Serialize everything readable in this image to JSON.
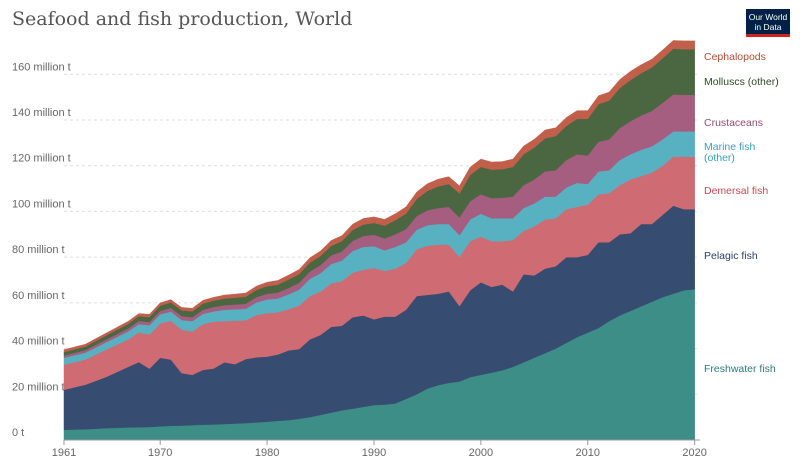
{
  "title": "Seafood and fish production, World",
  "logo": {
    "line1": "Our World",
    "line2": "in Data"
  },
  "chart_data": {
    "type": "area",
    "stacked": true,
    "title": "Seafood and fish production, World",
    "x": [
      1961,
      1963,
      1965,
      1967,
      1968,
      1969,
      1970,
      1971,
      1972,
      1973,
      1974,
      1975,
      1976,
      1977,
      1978,
      1979,
      1980,
      1981,
      1982,
      1983,
      1984,
      1985,
      1986,
      1987,
      1988,
      1989,
      1990,
      1991,
      1992,
      1993,
      1994,
      1995,
      1996,
      1997,
      1998,
      1999,
      2000,
      2001,
      2002,
      2003,
      2004,
      2005,
      2006,
      2007,
      2008,
      2009,
      2010,
      2011,
      2012,
      2013,
      2014,
      2015,
      2016,
      2017,
      2018,
      2019,
      2020
    ],
    "ylim": [
      0,
      175
    ],
    "y_ticks": [
      {
        "v": 0,
        "label": "0 t"
      },
      {
        "v": 20,
        "label": "20 million t"
      },
      {
        "v": 40,
        "label": "40 million t"
      },
      {
        "v": 60,
        "label": "60 million t"
      },
      {
        "v": 80,
        "label": "80 million t"
      },
      {
        "v": 100,
        "label": "100 million t"
      },
      {
        "v": 120,
        "label": "120 million t"
      },
      {
        "v": 140,
        "label": "140 million t"
      },
      {
        "v": 160,
        "label": "160 million t"
      }
    ],
    "x_ticks": [
      "1961",
      "1970",
      "1980",
      "1990",
      "2000",
      "2010",
      "2020"
    ],
    "series": [
      {
        "name": "Freshwater fish",
        "color": "#3d8e86",
        "values": [
          4.5,
          4.7,
          5.2,
          5.5,
          5.6,
          5.7,
          6.0,
          6.2,
          6.3,
          6.5,
          6.7,
          6.8,
          7.0,
          7.2,
          7.4,
          7.7,
          8.0,
          8.4,
          8.7,
          9.3,
          10.0,
          11.0,
          12.0,
          13.0,
          13.7,
          14.5,
          15.3,
          15.5,
          16.0,
          18.0,
          20.0,
          22.5,
          24.0,
          25.0,
          25.6,
          27.5,
          28.5,
          29.5,
          30.5,
          32.0,
          34.0,
          36.0,
          38.0,
          40.0,
          42.5,
          45.0,
          47.0,
          49.0,
          52.0,
          54.5,
          56.5,
          58.5,
          60.5,
          62.5,
          64.0,
          65.5,
          66.0
        ]
      },
      {
        "name": "Pelagic fish",
        "color": "#364d71",
        "values": [
          17.5,
          19.5,
          22.5,
          26.5,
          28.5,
          25.5,
          30.0,
          29.0,
          23.0,
          22.0,
          24.0,
          24.5,
          27.0,
          26.0,
          28.0,
          28.5,
          28.5,
          29.0,
          30.5,
          30.5,
          34.0,
          35.0,
          37.5,
          37.0,
          40.0,
          40.0,
          37.5,
          38.5,
          38.0,
          39.0,
          43.0,
          41.0,
          40.0,
          40.0,
          33.0,
          38.0,
          40.5,
          37.5,
          37.5,
          33.0,
          38.5,
          36.0,
          37.0,
          36.0,
          37.5,
          35.0,
          34.0,
          37.5,
          34.5,
          35.5,
          34.0,
          36.0,
          34.0,
          36.0,
          38.5,
          35.5,
          35.0
        ]
      },
      {
        "name": "Demersal fish",
        "color": "#cf6b72",
        "values": [
          11.0,
          11.0,
          12.0,
          12.0,
          13.0,
          15.0,
          15.0,
          17.0,
          19.0,
          19.0,
          20.0,
          20.5,
          18.0,
          19.0,
          17.0,
          18.5,
          19.0,
          18.5,
          18.0,
          19.0,
          19.0,
          19.0,
          19.0,
          19.5,
          19.5,
          20.0,
          22.5,
          20.0,
          21.0,
          20.5,
          20.5,
          21.5,
          21.5,
          20.5,
          21.5,
          21.5,
          20.0,
          20.0,
          19.0,
          22.5,
          19.0,
          21.5,
          21.5,
          21.0,
          21.0,
          22.0,
          22.0,
          21.0,
          21.5,
          21.5,
          23.5,
          21.0,
          22.5,
          21.5,
          21.5,
          23.0,
          23.0
        ]
      },
      {
        "name": "Marine fish (other)",
        "color": "#58b1c1",
        "values": [
          3.0,
          3.0,
          3.2,
          3.5,
          3.6,
          4.0,
          4.0,
          4.0,
          4.2,
          4.5,
          4.5,
          4.5,
          5.0,
          5.0,
          5.0,
          5.5,
          6.0,
          6.0,
          6.5,
          7.0,
          7.5,
          8.0,
          8.5,
          9.0,
          9.5,
          10.0,
          9.5,
          9.0,
          9.5,
          9.0,
          8.5,
          9.0,
          9.0,
          9.0,
          9.5,
          9.5,
          10.0,
          10.0,
          10.0,
          9.5,
          10.0,
          10.0,
          10.0,
          9.5,
          9.5,
          10.5,
          9.0,
          10.0,
          10.0,
          11.0,
          11.0,
          11.5,
          11.5,
          11.5,
          11.0,
          11.0,
          11.0
        ]
      },
      {
        "name": "Crustaceans",
        "color": "#a55d80",
        "values": [
          1.0,
          1.1,
          1.2,
          1.3,
          1.4,
          1.4,
          1.5,
          1.6,
          1.7,
          1.7,
          1.8,
          1.9,
          2.0,
          2.1,
          2.2,
          2.3,
          2.5,
          2.6,
          2.8,
          3.0,
          3.2,
          3.5,
          3.8,
          4.0,
          4.4,
          4.8,
          5.0,
          5.2,
          5.5,
          5.8,
          6.0,
          6.5,
          7.0,
          7.5,
          7.8,
          8.0,
          8.5,
          8.8,
          9.0,
          9.5,
          10.0,
          10.5,
          11.0,
          11.5,
          12.0,
          12.5,
          12.5,
          13.0,
          13.5,
          14.0,
          14.5,
          15.0,
          15.5,
          16.0,
          16.2,
          16.0,
          16.0
        ]
      },
      {
        "name": "Molluscs (other)",
        "color": "#4b6742",
        "values": [
          1.5,
          1.6,
          1.8,
          2.0,
          2.1,
          2.2,
          2.3,
          2.4,
          2.5,
          2.6,
          2.7,
          2.8,
          2.9,
          3.0,
          3.1,
          3.2,
          3.3,
          3.5,
          3.7,
          3.8,
          3.9,
          4.0,
          4.2,
          4.5,
          4.8,
          5.0,
          5.2,
          5.6,
          6.2,
          6.8,
          7.5,
          8.5,
          9.5,
          10.0,
          10.5,
          11.5,
          12.0,
          12.5,
          12.5,
          13.0,
          13.5,
          14.0,
          14.5,
          15.0,
          15.0,
          15.5,
          16.0,
          16.5,
          17.0,
          17.5,
          18.0,
          18.5,
          19.0,
          19.5,
          20.0,
          20.0,
          20.0
        ]
      },
      {
        "name": "Cephalopods",
        "color": "#c15f4b",
        "values": [
          1.0,
          1.0,
          1.0,
          1.1,
          1.1,
          1.2,
          1.2,
          1.2,
          1.3,
          1.3,
          1.4,
          1.4,
          1.5,
          1.5,
          1.6,
          1.6,
          1.7,
          1.8,
          1.9,
          2.0,
          2.1,
          2.2,
          2.3,
          2.4,
          2.5,
          2.6,
          2.6,
          2.7,
          2.8,
          2.9,
          3.0,
          3.1,
          3.1,
          3.2,
          3.3,
          3.4,
          3.4,
          3.3,
          3.3,
          3.4,
          3.6,
          3.6,
          3.6,
          3.6,
          3.6,
          3.6,
          3.6,
          3.6,
          3.7,
          3.7,
          3.8,
          3.7,
          3.6,
          3.6,
          3.6,
          3.6,
          3.6
        ]
      }
    ]
  }
}
